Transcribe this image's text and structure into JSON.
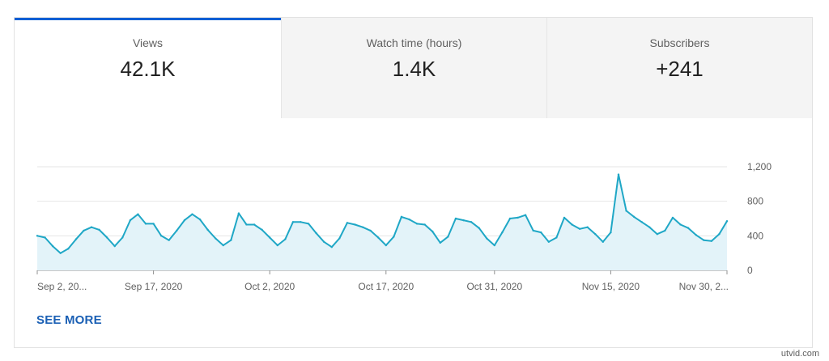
{
  "tabs": [
    {
      "label": "Views",
      "value": "42.1K",
      "active": true
    },
    {
      "label": "Watch time (hours)",
      "value": "1.4K",
      "active": false
    },
    {
      "label": "Subscribers",
      "value": "+241",
      "active": false
    }
  ],
  "see_more_label": "SEE MORE",
  "watermark": "utvid.com",
  "colors": {
    "accent": "#065fd4",
    "line": "#1fa7c6",
    "fill": "#e3f3f9",
    "link": "#1a5fb4"
  },
  "chart_data": {
    "type": "area",
    "ylim": [
      0,
      1200
    ],
    "yticks": [
      0,
      400,
      800,
      1200
    ],
    "ytick_labels": [
      "0",
      "400",
      "800",
      "1,200"
    ],
    "xtick_labels": [
      "Sep 2, 20...",
      "Sep 17, 2020",
      "Oct 2, 2020",
      "Oct 17, 2020",
      "Oct 31, 2020",
      "Nov 15, 2020",
      "Nov 30, 2..."
    ],
    "xtick_positions": [
      0,
      15,
      30,
      45,
      59,
      74,
      89
    ],
    "grid": true,
    "series": [
      {
        "values": [
          400,
          380,
          280,
          200,
          250,
          360,
          460,
          500,
          470,
          380,
          280,
          380,
          580,
          650,
          540,
          540,
          400,
          350,
          460,
          580,
          650,
          590,
          470,
          370,
          290,
          350,
          660,
          530,
          530,
          470,
          380,
          290,
          360,
          560,
          560,
          540,
          430,
          330,
          270,
          370,
          550,
          530,
          500,
          460,
          380,
          290,
          390,
          620,
          590,
          540,
          530,
          450,
          320,
          390,
          600,
          580,
          560,
          490,
          370,
          290,
          440,
          600,
          610,
          640,
          460,
          440,
          330,
          380,
          610,
          530,
          480,
          500,
          420,
          330,
          440,
          1110,
          690,
          620,
          560,
          500,
          420,
          460,
          610,
          530,
          490,
          410,
          350,
          340,
          420,
          570
        ]
      }
    ]
  }
}
